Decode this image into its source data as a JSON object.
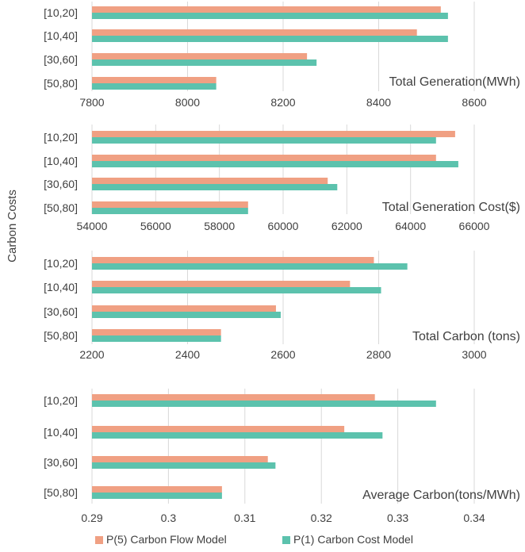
{
  "figure": {
    "y_axis_label": "Carbon Costs",
    "colors": {
      "p5": "#f0a083",
      "p1": "#5cc2ad",
      "grid": "#d9d9d9",
      "text": "#404040"
    }
  },
  "legend": [
    {
      "name": "P(5) Carbon Flow Model",
      "color": "#f0a083"
    },
    {
      "name": "P(1) Carbon Cost Model",
      "color": "#5cc2ad"
    }
  ],
  "chart_data": [
    {
      "type": "bar",
      "orientation": "horizontal",
      "title": "Total Generation(MWh)",
      "categories": [
        "[10,20]",
        "[10,40]",
        "[30,60]",
        "[50,80]"
      ],
      "series": [
        {
          "name": "P(5) Carbon Flow Model",
          "values": [
            8530,
            8480,
            8250,
            8060
          ]
        },
        {
          "name": "P(1) Carbon Cost Model",
          "values": [
            8545,
            8545,
            8270,
            8060
          ]
        }
      ],
      "xlim": [
        7800,
        8600
      ],
      "xticks": [
        "7800",
        "8000",
        "8200",
        "8400",
        "8600"
      ],
      "grid": true
    },
    {
      "type": "bar",
      "orientation": "horizontal",
      "title": "Total Generation Cost($)",
      "categories": [
        "[10,20]",
        "[10,40]",
        "[30,60]",
        "[50,80]"
      ],
      "series": [
        {
          "name": "P(5) Carbon Flow Model",
          "values": [
            65400,
            64800,
            61400,
            58900
          ]
        },
        {
          "name": "P(1) Carbon Cost Model",
          "values": [
            64800,
            65500,
            61700,
            58900
          ]
        }
      ],
      "xlim": [
        54000,
        66000
      ],
      "xticks": [
        "54000",
        "56000",
        "58000",
        "60000",
        "62000",
        "64000",
        "66000"
      ],
      "grid": true
    },
    {
      "type": "bar",
      "orientation": "horizontal",
      "title": "Total Carbon (tons)",
      "categories": [
        "[10,20]",
        "[10,40]",
        "[30,60]",
        "[50,80]"
      ],
      "series": [
        {
          "name": "P(5) Carbon Flow Model",
          "values": [
            2790,
            2740,
            2585,
            2470
          ]
        },
        {
          "name": "P(1) Carbon Cost Model",
          "values": [
            2860,
            2805,
            2595,
            2470
          ]
        }
      ],
      "xlim": [
        2200,
        3000
      ],
      "xticks": [
        "2200",
        "2400",
        "2600",
        "2800",
        "3000"
      ],
      "grid": true
    },
    {
      "type": "bar",
      "orientation": "horizontal",
      "title": "Average Carbon(tons/MWh)",
      "categories": [
        "[10,20]",
        "[10,40]",
        "[30,60]",
        "[50,80]"
      ],
      "series": [
        {
          "name": "P(5) Carbon Flow Model",
          "values": [
            0.327,
            0.323,
            0.313,
            0.307
          ]
        },
        {
          "name": "P(1) Carbon Cost Model",
          "values": [
            0.335,
            0.328,
            0.314,
            0.307
          ]
        }
      ],
      "xlim": [
        0.29,
        0.34
      ],
      "xticks": [
        "0.29",
        "0.3",
        "0.31",
        "0.32",
        "0.33",
        "0.34"
      ],
      "grid": true
    }
  ]
}
